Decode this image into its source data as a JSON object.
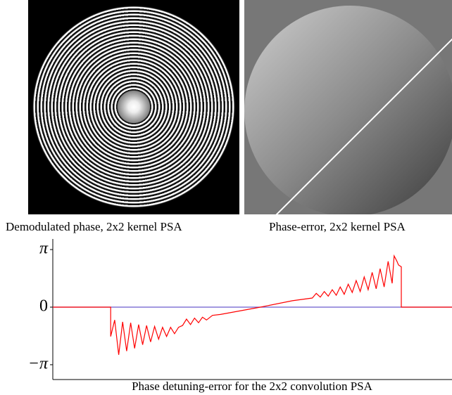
{
  "figure": {
    "panels": [
      {
        "caption": "Demodulated phase, 2x2 kernel PSA"
      },
      {
        "caption": "Phase-error, 2x2 kernel PSA"
      }
    ]
  },
  "chart_data": {
    "type": "line",
    "xlabel": "Phase detuning-error for the 2x2 convolution PSA",
    "x": [
      0,
      14.5,
      14.5,
      15.5,
      16.5,
      17.5,
      18.5,
      19.5,
      20.5,
      21.5,
      22.5,
      23.5,
      24.5,
      25.5,
      26.5,
      27.5,
      28.5,
      29.5,
      30.5,
      31.5,
      32.5,
      33.5,
      34.5,
      35.5,
      36.5,
      37.5,
      38.5,
      40,
      42,
      52,
      60,
      65,
      66,
      67,
      68,
      69,
      70,
      71,
      72,
      73,
      74,
      75,
      76,
      77,
      78,
      79,
      80,
      81,
      82,
      83,
      84,
      85,
      85.5,
      86.2,
      86.6,
      87.3,
      87.3,
      100
    ],
    "values": [
      0,
      0,
      -1.6,
      -0.7,
      -2.6,
      -0.8,
      -2.4,
      -0.85,
      -2.25,
      -0.95,
      -2.05,
      -1.0,
      -1.9,
      -1.05,
      -1.75,
      -1.1,
      -1.6,
      -1.1,
      -1.45,
      -1.1,
      -1.0,
      -0.65,
      -0.95,
      -0.6,
      -0.85,
      -0.55,
      -0.7,
      -0.45,
      -0.4,
      0,
      0.35,
      0.5,
      0.75,
      0.55,
      0.85,
      0.6,
      0.95,
      0.65,
      1.1,
      0.7,
      1.25,
      0.8,
      1.45,
      0.85,
      1.65,
      0.95,
      1.9,
      1.0,
      2.1,
      1.1,
      2.5,
      1.3,
      2.8,
      2.5,
      2.3,
      2.2,
      0,
      0
    ],
    "color": "#ff0000",
    "zero_line_color": "#6a5acd",
    "xlim": [
      0,
      100
    ],
    "ylim": [
      -3.95,
      3.72
    ],
    "yticks": [
      {
        "value": 3.14159,
        "label": "π"
      },
      0,
      {
        "value": -3.14159,
        "label": "−π"
      }
    ]
  }
}
